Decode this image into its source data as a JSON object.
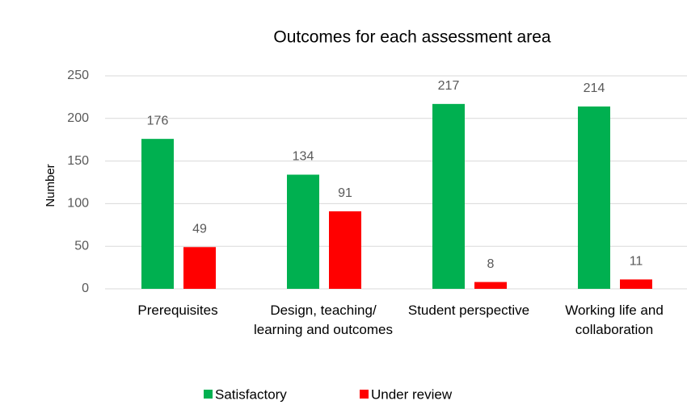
{
  "chart_data": {
    "type": "bar",
    "title": "Outcomes for each assessment area",
    "y_label": "Number",
    "categories": [
      "Prerequisites",
      "Design, teaching/ learning and outcomes",
      "Student perspective",
      "Working life and collaboration"
    ],
    "series": [
      {
        "name": "Satisfactory",
        "color": "#00b050",
        "values": [
          176,
          134,
          217,
          214
        ]
      },
      {
        "name": "Under review",
        "color": "#ff0000",
        "values": [
          49,
          91,
          8,
          11
        ]
      }
    ],
    "ylim": [
      0,
      250
    ],
    "yticks": [
      0,
      50,
      100,
      150,
      200,
      250
    ],
    "grid": true,
    "legend": "bottom"
  }
}
